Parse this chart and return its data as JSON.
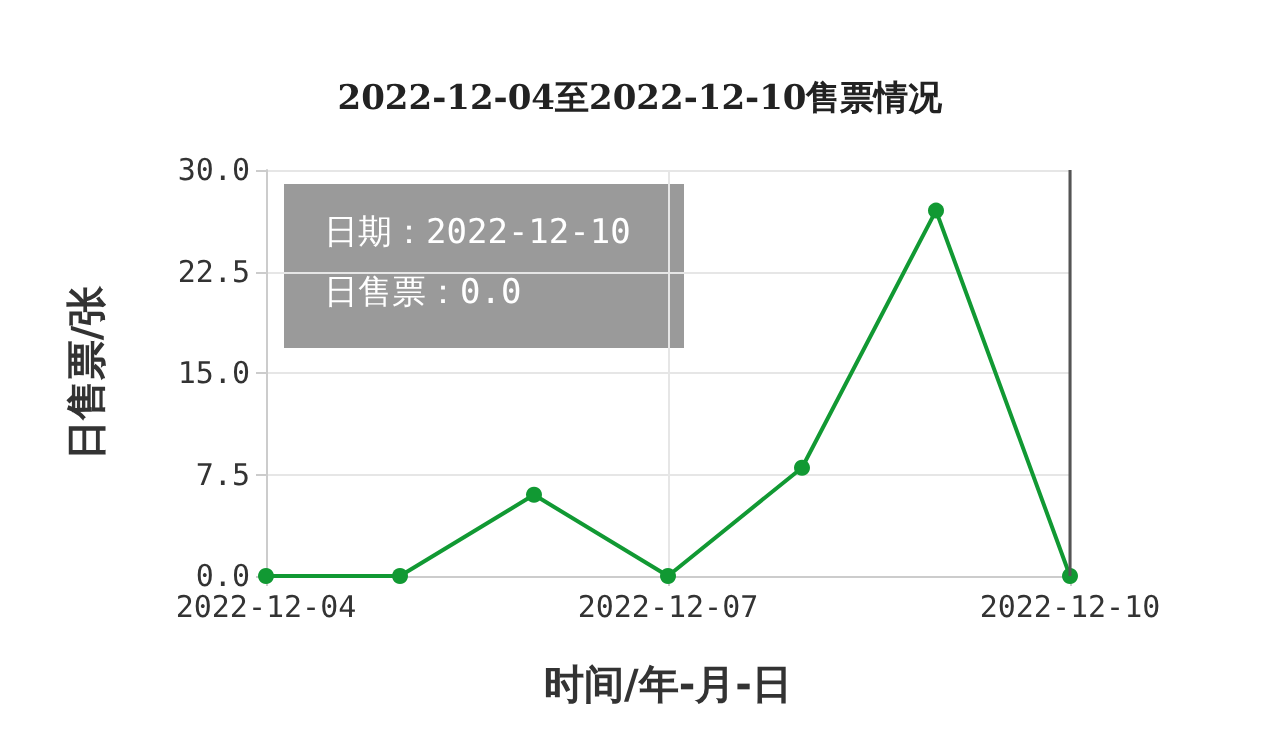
{
  "chart_data": {
    "type": "line",
    "title": "2022-12-04至2022-12-10售票情况",
    "xlabel": "时间/年-月-日",
    "ylabel": "日售票/张",
    "x": [
      "2022-12-04",
      "2022-12-05",
      "2022-12-06",
      "2022-12-07",
      "2022-12-08",
      "2022-12-09",
      "2022-12-10"
    ],
    "series": [
      {
        "color": "#119933",
        "values": [
          0,
          0,
          6,
          0,
          8,
          27,
          0
        ]
      }
    ],
    "xlim": [
      "2022-12-04",
      "2022-12-10"
    ],
    "xticks": [
      "2022-12-04",
      "2022-12-07",
      "2022-12-10"
    ],
    "ylim": [
      0,
      30
    ],
    "yticks": [
      {
        "value": 0,
        "label": "0.0"
      },
      {
        "value": 7.5,
        "label": "7.5"
      },
      {
        "value": 15,
        "label": "15.0"
      },
      {
        "value": 22.5,
        "label": "22.5"
      },
      {
        "value": 30,
        "label": "30.0"
      }
    ],
    "grid": true,
    "marker": "circle",
    "line_style": "solid",
    "ref_lines": [
      {
        "axis": "x",
        "value": "2022-12-10",
        "label": null,
        "color": "#555555"
      }
    ],
    "annotations": [
      "日期：2022-12-10",
      "日售票：0.0"
    ]
  }
}
